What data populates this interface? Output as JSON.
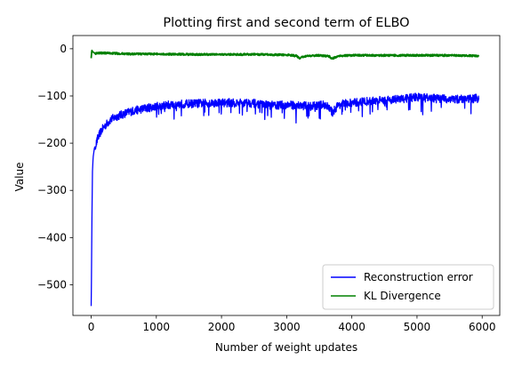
{
  "chart_data": {
    "type": "line",
    "title": "Plotting first and second term of ELBO",
    "xlabel": "Number of weight updates",
    "ylabel": "Value",
    "xlim": [
      -280,
      6270
    ],
    "ylim": [
      -565,
      28
    ],
    "xticks": [
      0,
      1000,
      2000,
      3000,
      4000,
      5000,
      6000
    ],
    "yticks": [
      0,
      -100,
      -200,
      -300,
      -400,
      -500
    ],
    "grid": false,
    "legend_position": "lower-right",
    "series": [
      {
        "name": "Reconstruction error",
        "color": "#0000ff",
        "noise_amplitude": 9,
        "x": [
          0,
          5,
          10,
          20,
          30,
          50,
          80,
          100,
          150,
          200,
          300,
          400,
          500,
          600,
          800,
          1000,
          1200,
          1400,
          1600,
          1800,
          2000,
          2200,
          2400,
          2600,
          2800,
          3000,
          3200,
          3400,
          3600,
          3700,
          3800,
          4000,
          4200,
          4400,
          4600,
          4800,
          5000,
          5200,
          5400,
          5600,
          5800,
          5950
        ],
        "y": [
          -545,
          -480,
          -380,
          -260,
          -230,
          -210,
          -200,
          -190,
          -175,
          -165,
          -150,
          -143,
          -138,
          -133,
          -127,
          -122,
          -119,
          -117,
          -116,
          -115,
          -114,
          -115,
          -114,
          -118,
          -120,
          -119,
          -120,
          -122,
          -118,
          -135,
          -118,
          -115,
          -112,
          -110,
          -108,
          -106,
          -102,
          -105,
          -106,
          -107,
          -106,
          -105
        ]
      },
      {
        "name": "KL Divergence",
        "color": "#008000",
        "noise_amplitude": 2,
        "x": [
          0,
          10,
          20,
          40,
          60,
          100,
          200,
          400,
          600,
          1000,
          1500,
          2000,
          2500,
          3000,
          3150,
          3200,
          3300,
          3500,
          3650,
          3700,
          3800,
          4000,
          4500,
          5000,
          5500,
          5950
        ],
        "y": [
          -20,
          -3,
          -6,
          -8,
          -10,
          -9,
          -9,
          -10,
          -11,
          -11,
          -12,
          -12,
          -12,
          -13,
          -15,
          -20,
          -15,
          -14,
          -16,
          -21,
          -15,
          -14,
          -14,
          -14,
          -14,
          -15
        ]
      }
    ]
  }
}
